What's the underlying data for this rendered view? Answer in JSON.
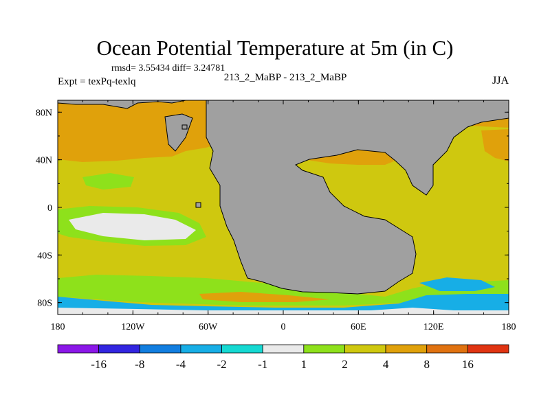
{
  "chart_data": {
    "type": "heatmap",
    "title": "Ocean Potential Temperature at 5m (in C)",
    "stats_text": "rmsd= 3.55434  diff= 3.24781",
    "left_label": "Expt = texPq-texlq",
    "center_label": "213_2_MaBP - 213_2_MaBP",
    "season": "JJA",
    "x_axis": {
      "range": [
        -180,
        180
      ],
      "ticks": [
        {
          "value": -180,
          "label": "180"
        },
        {
          "value": -120,
          "label": "120W"
        },
        {
          "value": -60,
          "label": "60W"
        },
        {
          "value": 0,
          "label": "0"
        },
        {
          "value": 60,
          "label": "60E"
        },
        {
          "value": 120,
          "label": "120E"
        },
        {
          "value": 180,
          "label": "180"
        }
      ]
    },
    "y_axis": {
      "range": [
        -90,
        90
      ],
      "ticks": [
        {
          "value": 80,
          "label": "80N"
        },
        {
          "value": 40,
          "label": "40N"
        },
        {
          "value": 0,
          "label": "0"
        },
        {
          "value": -40,
          "label": "40S"
        },
        {
          "value": -80,
          "label": "80S"
        }
      ]
    },
    "colorbar": {
      "colors": [
        "#8b17e8",
        "#3225e0",
        "#127ee0",
        "#17aee6",
        "#15d9d2",
        "#eaeaea",
        "#8ee11b",
        "#cfc80f",
        "#e0a10b",
        "#e07210",
        "#e03412"
      ],
      "labels": [
        "-16",
        "-8",
        "-4",
        "-2",
        "-1",
        "1",
        "2",
        "4",
        "8",
        "16"
      ]
    },
    "land_color": "#a0a0a0",
    "regions": [
      {
        "name": "base",
        "color": "#cfc80f"
      },
      {
        "name": "north-atlantic-warm",
        "color": "#e0a10b"
      },
      {
        "name": "north-pacific-warm",
        "color": "#e0a10b"
      },
      {
        "name": "south-pacific-cold",
        "color": "#8ee11b"
      },
      {
        "name": "south-pacific-neutral",
        "color": "#eaeaea"
      },
      {
        "name": "southern-ocean-green",
        "color": "#8ee11b"
      },
      {
        "name": "antarctic-cold",
        "color": "#17aee6"
      },
      {
        "name": "antarctic-neutral",
        "color": "#eaeaea"
      }
    ]
  }
}
